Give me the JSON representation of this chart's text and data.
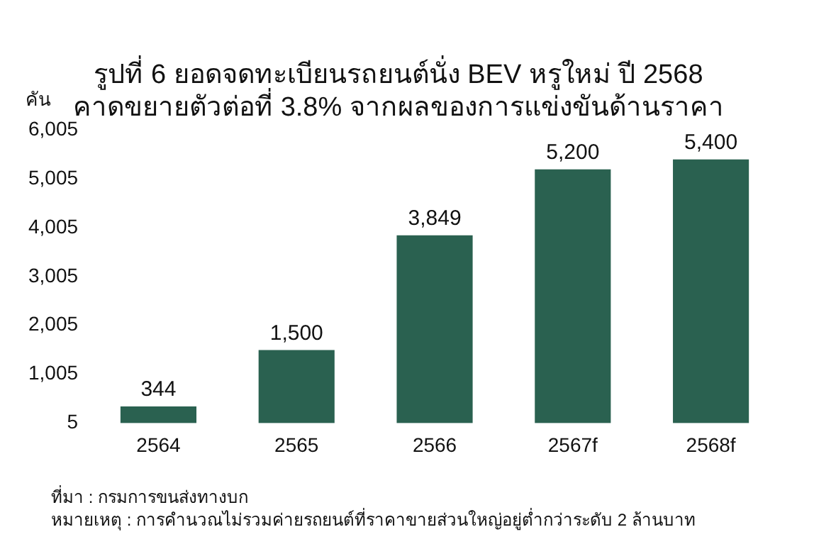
{
  "chart_data": {
    "type": "bar",
    "title": "รูปที่ 6 ยอดจดทะเบียนรถยนต์นั่ง BEV หรูใหม่ ปี 2568",
    "subtitle": "คาดขยายตัวต่อที่ 3.8% จากผลของการแข่งขันด้านราคา",
    "ylabel": "คัน",
    "categories": [
      "2564",
      "2565",
      "2566",
      "2567f",
      "2568f"
    ],
    "values": [
      344,
      1500,
      3849,
      5200,
      5400
    ],
    "value_labels": [
      "344",
      "1,500",
      "3,849",
      "5,200",
      "5,400"
    ],
    "color": "#2a6150",
    "ylim": [
      5,
      6005
    ],
    "yticks": [
      5,
      {
        "value": 1005,
        "label": "1,005"
      },
      {
        "value": 2005,
        "label": "2,005"
      },
      {
        "value": 3005,
        "label": "3,005"
      },
      {
        "value": 4005,
        "label": "4,005"
      },
      {
        "value": 5005,
        "label": "5,005"
      },
      {
        "value": 6005,
        "label": "6,005"
      }
    ],
    "grid": false,
    "legend": false,
    "annotations": [
      "ที่มา : กรมการขนส่งทางบก",
      "หมายเหตุ : การคำนวณไม่รวมค่ายรถยนต์ที่ราคาขายส่วนใหญ่อยู่ต่ำกว่าระดับ 2 ล้านบาท"
    ]
  }
}
